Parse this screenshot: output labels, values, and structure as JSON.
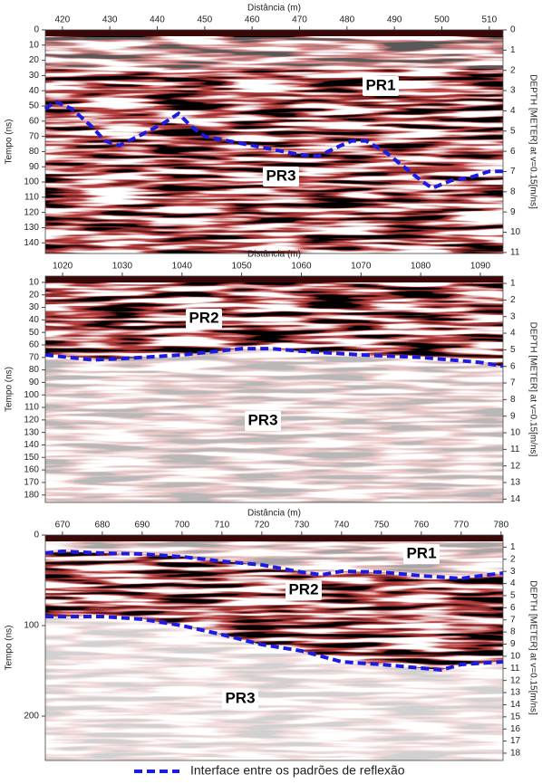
{
  "chart_data": [
    {
      "type": "line",
      "xlabel": "Distância (m)",
      "ylabel": "Tempo (ns)",
      "y2label": "DEPTH [METER] at v=0.15[m/ns]",
      "xlim": [
        416.4,
        512.9
      ],
      "xticks": [
        420,
        430,
        440,
        450,
        460,
        470,
        480,
        490,
        500,
        510
      ],
      "ylim": [
        0,
        147
      ],
      "yticks": [
        0,
        10,
        20,
        30,
        40,
        50,
        60,
        70,
        80,
        90,
        100,
        110,
        120,
        130,
        140
      ],
      "y2lim": [
        0,
        11.05
      ],
      "y2ticks": [
        0,
        1,
        2,
        3,
        4,
        5,
        6,
        7,
        8,
        9,
        10,
        11
      ],
      "dashed": true,
      "annotations": [
        "PR1",
        "PR3"
      ],
      "series": [
        {
          "color": "#1c1ce0",
          "x": [
            416.4,
            418.5,
            422,
            426,
            429,
            432,
            436,
            441,
            444.5,
            447,
            450,
            455,
            460,
            465,
            470,
            474,
            478,
            481,
            484,
            488,
            492,
            496,
            498,
            502,
            506,
            510,
            512.9
          ],
          "values": [
            52,
            47,
            52,
            63,
            73,
            76,
            70,
            62,
            55,
            63,
            70,
            73,
            76,
            79,
            82,
            83,
            77,
            73,
            73,
            80,
            90,
            100,
            104,
            99,
            97,
            93,
            93
          ]
        }
      ]
    },
    {
      "type": "line",
      "xlabel": "Distância (m)",
      "ylabel": "Tempo (ns)",
      "y2label": "DEPTH [METER] at v=0.15[m/ns]",
      "xlim": [
        1017.1,
        1093.8
      ],
      "xticks": [
        1020,
        1030,
        1040,
        1050,
        1060,
        1070,
        1080,
        1090
      ],
      "ylim": [
        5,
        186
      ],
      "yticks": [
        10,
        20,
        30,
        40,
        50,
        60,
        70,
        80,
        90,
        100,
        110,
        120,
        130,
        140,
        150,
        160,
        170,
        180
      ],
      "y2lim": [
        0.56,
        14.2
      ],
      "y2ticks": [
        1,
        2,
        3,
        4,
        5,
        6,
        7,
        8,
        9,
        10,
        11,
        12,
        13,
        14
      ],
      "dashed": true,
      "annotations": [
        "PR2",
        "PR3"
      ],
      "series": [
        {
          "color": "#1c1ce0",
          "x": [
            1017.1,
            1025,
            1030,
            1040,
            1050,
            1055,
            1060,
            1070,
            1080,
            1090,
            1093.8
          ],
          "values": [
            68,
            72,
            71,
            68,
            63,
            63,
            65,
            68,
            70,
            74,
            77
          ]
        }
      ]
    },
    {
      "type": "line",
      "xlabel": "Distância (m)",
      "ylabel": "Tempo (ns)",
      "y2label": "DEPTH [METER] at v=0.15[m/ns]",
      "xlim": [
        665.7,
        780.5
      ],
      "xticks": [
        670,
        680,
        690,
        700,
        710,
        720,
        730,
        740,
        750,
        760,
        770,
        780
      ],
      "ylim": [
        0,
        249
      ],
      "yticks": [
        0,
        100,
        200
      ],
      "y2lim": [
        0,
        18.6
      ],
      "y2ticks": [
        1,
        2,
        3,
        4,
        5,
        6,
        7,
        8,
        9,
        10,
        11,
        12,
        13,
        14,
        15,
        16,
        17,
        18
      ],
      "dashed": true,
      "annotations": [
        "PR1",
        "PR2",
        "PR3"
      ],
      "series": [
        {
          "color": "#1c1ce0",
          "x": [
            665.7,
            670,
            680,
            690,
            700,
            710,
            720,
            730,
            735,
            740,
            750,
            760,
            770,
            775,
            780.5
          ],
          "values": [
            20,
            18,
            20,
            21,
            24,
            29,
            33,
            41,
            44,
            40,
            41,
            45,
            48,
            45,
            42
          ]
        },
        {
          "color": "#1c1ce0",
          "x": [
            665.7,
            680,
            690,
            700,
            710,
            720,
            730,
            740,
            750,
            760,
            765,
            770,
            780.5
          ],
          "values": [
            90,
            90,
            93,
            100,
            110,
            121,
            128,
            140,
            143,
            147,
            149,
            143,
            140
          ]
        }
      ]
    }
  ],
  "legend": {
    "label": "Interface entre os padrões de reflexão",
    "color": "#1c1ce0"
  }
}
